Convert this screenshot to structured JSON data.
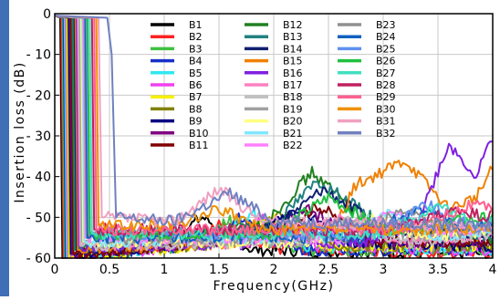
{
  "chart_data": {
    "type": "line",
    "xlabel": "Frequency(GHz)",
    "ylabel": "Insertion loss (dB)",
    "xlim": [
      0,
      4
    ],
    "ylim": [
      -60,
      0
    ],
    "x_ticks": [
      "0",
      "0.5",
      "1",
      "1.5",
      "2",
      "2.5",
      "3",
      "3.5",
      "4"
    ],
    "y_ticks": [
      "0",
      "- 10",
      "- 20",
      "- 30",
      "- 40",
      "- 50",
      "- 60"
    ],
    "grid": true,
    "legend_position": "top-right",
    "series": [
      {
        "name": "B1",
        "color": "#000000",
        "cutoff": 0.05,
        "peak": [
          1.35,
          -50
        ],
        "points": [
          [
            0,
            -0.5
          ],
          [
            0.05,
            -1
          ],
          [
            0.07,
            -60
          ],
          [
            1.0,
            -56
          ],
          [
            1.35,
            -50
          ],
          [
            1.8,
            -58
          ],
          [
            4,
            -59
          ]
        ]
      },
      {
        "name": "B2",
        "color": "#ff2020",
        "cutoff": 0.06,
        "peak": [
          1.5,
          -52
        ],
        "points": [
          [
            0,
            -0.5
          ],
          [
            0.06,
            -1
          ],
          [
            0.08,
            -60
          ],
          [
            1.1,
            -57
          ],
          [
            1.5,
            -52
          ],
          [
            2.0,
            -58
          ],
          [
            4,
            -59
          ]
        ]
      },
      {
        "name": "B3",
        "color": "#40c040",
        "cutoff": 0.07,
        "peak": [
          1.6,
          -51
        ],
        "points": [
          [
            0,
            -0.5
          ],
          [
            0.07,
            -1
          ],
          [
            0.09,
            -60
          ],
          [
            1.2,
            -57
          ],
          [
            1.6,
            -51
          ],
          [
            2.1,
            -58
          ],
          [
            4,
            -58
          ]
        ]
      },
      {
        "name": "B4",
        "color": "#1830c8",
        "cutoff": 0.08,
        "peak": [
          1.7,
          -50
        ],
        "points": [
          [
            0,
            -0.5
          ],
          [
            0.08,
            -1
          ],
          [
            0.1,
            -60
          ],
          [
            1.3,
            -57
          ],
          [
            1.7,
            -50
          ],
          [
            2.2,
            -58
          ],
          [
            4,
            -58
          ]
        ]
      },
      {
        "name": "B5",
        "color": "#30e8f0",
        "cutoff": 0.09,
        "peak": [
          1.8,
          -49
        ],
        "points": [
          [
            0,
            -0.5
          ],
          [
            0.09,
            -1
          ],
          [
            0.11,
            -60
          ],
          [
            1.4,
            -56
          ],
          [
            1.8,
            -49
          ],
          [
            2.3,
            -57
          ],
          [
            4,
            -58
          ]
        ]
      },
      {
        "name": "B6",
        "color": "#f040f0",
        "cutoff": 0.1,
        "peak": [
          1.9,
          -50
        ],
        "points": [
          [
            0,
            -0.5
          ],
          [
            0.1,
            -1
          ],
          [
            0.12,
            -60
          ],
          [
            1.5,
            -56
          ],
          [
            1.9,
            -50
          ],
          [
            2.4,
            -57
          ],
          [
            4,
            -58
          ]
        ]
      },
      {
        "name": "B7",
        "color": "#f8f000",
        "cutoff": 0.11,
        "peak": [
          2.0,
          -50
        ],
        "points": [
          [
            0,
            -0.5
          ],
          [
            0.11,
            -1
          ],
          [
            0.13,
            -60
          ],
          [
            1.6,
            -56
          ],
          [
            2.0,
            -50
          ],
          [
            2.5,
            -57
          ],
          [
            4,
            -57
          ]
        ]
      },
      {
        "name": "B8",
        "color": "#808000",
        "cutoff": 0.12,
        "peak": [
          2.1,
          -49
        ],
        "points": [
          [
            0,
            -0.5
          ],
          [
            0.12,
            -1
          ],
          [
            0.14,
            -59
          ],
          [
            1.7,
            -56
          ],
          [
            2.1,
            -49
          ],
          [
            2.6,
            -57
          ],
          [
            4,
            -57
          ]
        ]
      },
      {
        "name": "B9",
        "color": "#000080",
        "cutoff": 0.13,
        "peak": [
          2.2,
          -48
        ],
        "points": [
          [
            0,
            -0.5
          ],
          [
            0.13,
            -1
          ],
          [
            0.15,
            -59
          ],
          [
            1.8,
            -55
          ],
          [
            2.2,
            -48
          ],
          [
            2.7,
            -56
          ],
          [
            4,
            -57
          ]
        ]
      },
      {
        "name": "B10",
        "color": "#800080",
        "cutoff": 0.14,
        "peak": [
          2.3,
          -48
        ],
        "points": [
          [
            0,
            -0.5
          ],
          [
            0.14,
            -1
          ],
          [
            0.16,
            -59
          ],
          [
            1.9,
            -55
          ],
          [
            2.3,
            -48
          ],
          [
            2.8,
            -56
          ],
          [
            4,
            -56
          ]
        ]
      },
      {
        "name": "B11",
        "color": "#800000",
        "cutoff": 0.15,
        "peak": [
          2.4,
          -47
        ],
        "points": [
          [
            0,
            -0.5
          ],
          [
            0.15,
            -1
          ],
          [
            0.17,
            -59
          ],
          [
            2.0,
            -55
          ],
          [
            2.4,
            -47
          ],
          [
            2.9,
            -56
          ],
          [
            4,
            -56
          ]
        ]
      },
      {
        "name": "B12",
        "color": "#208020",
        "cutoff": 0.16,
        "peak": [
          2.35,
          -39
        ],
        "points": [
          [
            0,
            -0.5
          ],
          [
            0.16,
            -1
          ],
          [
            0.18,
            -58
          ],
          [
            1.9,
            -52
          ],
          [
            2.35,
            -39
          ],
          [
            2.9,
            -52
          ],
          [
            4,
            -55
          ]
        ]
      },
      {
        "name": "B13",
        "color": "#208080",
        "cutoff": 0.17,
        "peak": [
          2.4,
          -41
        ],
        "points": [
          [
            0,
            -0.5
          ],
          [
            0.17,
            -1
          ],
          [
            0.19,
            -58
          ],
          [
            2.0,
            -52
          ],
          [
            2.4,
            -41
          ],
          [
            3.0,
            -52
          ],
          [
            4,
            -55
          ]
        ]
      },
      {
        "name": "B14",
        "color": "#102070",
        "cutoff": 0.18,
        "peak": [
          2.45,
          -43
        ],
        "points": [
          [
            0,
            -0.5
          ],
          [
            0.18,
            -1
          ],
          [
            0.2,
            -58
          ],
          [
            2.0,
            -53
          ],
          [
            2.45,
            -43
          ],
          [
            3.0,
            -53
          ],
          [
            4,
            -54
          ]
        ]
      },
      {
        "name": "B15",
        "color": "#f08000",
        "cutoff": 0.19,
        "peak": [
          3.2,
          -36
        ],
        "points": [
          [
            0,
            -0.5
          ],
          [
            0.19,
            -1
          ],
          [
            0.21,
            -58
          ],
          [
            2.5,
            -55
          ],
          [
            2.75,
            -42
          ],
          [
            3.2,
            -36
          ],
          [
            3.6,
            -48
          ],
          [
            3.85,
            -45
          ],
          [
            4,
            -38
          ]
        ]
      },
      {
        "name": "B16",
        "color": "#8020e0",
        "cutoff": 0.2,
        "peak": [
          3.6,
          -32
        ],
        "points": [
          [
            0,
            -0.5
          ],
          [
            0.2,
            -1
          ],
          [
            0.22,
            -57
          ],
          [
            2.9,
            -56
          ],
          [
            3.3,
            -52
          ],
          [
            3.6,
            -32
          ],
          [
            3.85,
            -40
          ],
          [
            4,
            -30
          ]
        ]
      },
      {
        "name": "B17",
        "color": "#ff80c0",
        "cutoff": 0.21,
        "peak": [
          2.6,
          -50
        ],
        "points": [
          [
            0,
            -0.5
          ],
          [
            0.21,
            -1
          ],
          [
            0.23,
            -57
          ],
          [
            2.1,
            -56
          ],
          [
            2.6,
            -50
          ],
          [
            3.1,
            -56
          ],
          [
            4,
            -54
          ]
        ]
      },
      {
        "name": "B18",
        "color": "#c0c0c0",
        "cutoff": 0.22,
        "peak": [
          2.7,
          -51
        ],
        "points": [
          [
            0,
            -0.5
          ],
          [
            0.22,
            -1
          ],
          [
            0.24,
            -57
          ],
          [
            2.2,
            -56
          ],
          [
            2.7,
            -51
          ],
          [
            3.2,
            -56
          ],
          [
            4,
            -54
          ]
        ]
      },
      {
        "name": "B19",
        "color": "#a0a0a0",
        "cutoff": 0.23,
        "peak": [
          2.8,
          -50
        ],
        "points": [
          [
            0,
            -0.5
          ],
          [
            0.23,
            -1
          ],
          [
            0.25,
            -56
          ],
          [
            2.3,
            -56
          ],
          [
            2.8,
            -50
          ],
          [
            3.3,
            -55
          ],
          [
            4,
            -53
          ]
        ]
      },
      {
        "name": "B20",
        "color": "#ffff80",
        "cutoff": 0.24,
        "peak": [
          2.9,
          -50
        ],
        "points": [
          [
            0,
            -0.5
          ],
          [
            0.24,
            -1
          ],
          [
            0.26,
            -56
          ],
          [
            2.4,
            -56
          ],
          [
            2.9,
            -50
          ],
          [
            3.4,
            -55
          ],
          [
            4,
            -53
          ]
        ]
      },
      {
        "name": "B21",
        "color": "#80e8ff",
        "cutoff": 0.25,
        "peak": [
          3.0,
          -49
        ],
        "points": [
          [
            0,
            -0.5
          ],
          [
            0.25,
            -1
          ],
          [
            0.27,
            -56
          ],
          [
            2.5,
            -55
          ],
          [
            3.0,
            -49
          ],
          [
            3.5,
            -55
          ],
          [
            4,
            -53
          ]
        ]
      },
      {
        "name": "B22",
        "color": "#ff80ff",
        "cutoff": 0.26,
        "peak": [
          3.1,
          -49
        ],
        "points": [
          [
            0,
            -0.5
          ],
          [
            0.26,
            -1
          ],
          [
            0.28,
            -55
          ],
          [
            2.6,
            -55
          ],
          [
            3.1,
            -49
          ],
          [
            3.6,
            -54
          ],
          [
            4,
            -52
          ]
        ]
      },
      {
        "name": "B23",
        "color": "#909090",
        "cutoff": 0.27,
        "peak": [
          3.2,
          -48
        ],
        "points": [
          [
            0,
            -0.5
          ],
          [
            0.27,
            -1
          ],
          [
            0.29,
            -55
          ],
          [
            2.7,
            -55
          ],
          [
            3.2,
            -48
          ],
          [
            3.7,
            -54
          ],
          [
            4,
            -52
          ]
        ]
      },
      {
        "name": "B24",
        "color": "#1060c0",
        "cutoff": 0.28,
        "peak": [
          3.3,
          -48
        ],
        "points": [
          [
            0,
            -0.5
          ],
          [
            0.28,
            -1
          ],
          [
            0.3,
            -55
          ],
          [
            2.8,
            -55
          ],
          [
            3.3,
            -48
          ],
          [
            3.8,
            -53
          ],
          [
            4,
            -51
          ]
        ]
      },
      {
        "name": "B25",
        "color": "#6090f0",
        "cutoff": 0.29,
        "peak": [
          3.4,
          -47
        ],
        "points": [
          [
            0,
            -0.5
          ],
          [
            0.29,
            -1
          ],
          [
            0.31,
            -54
          ],
          [
            2.9,
            -54
          ],
          [
            3.4,
            -47
          ],
          [
            3.85,
            -53
          ],
          [
            4,
            -51
          ]
        ]
      },
      {
        "name": "B26",
        "color": "#20c040",
        "cutoff": 0.3,
        "peak": [
          2.5,
          -45
        ],
        "points": [
          [
            0,
            -0.5
          ],
          [
            0.3,
            -1
          ],
          [
            0.32,
            -54
          ],
          [
            2.0,
            -54
          ],
          [
            2.5,
            -45
          ],
          [
            3.0,
            -53
          ],
          [
            4,
            -50
          ]
        ]
      },
      {
        "name": "B27",
        "color": "#40e0c0",
        "cutoff": 0.32,
        "peak": [
          3.5,
          -47
        ],
        "points": [
          [
            0,
            -0.5
          ],
          [
            0.32,
            -1
          ],
          [
            0.34,
            -54
          ],
          [
            3.0,
            -54
          ],
          [
            3.5,
            -47
          ],
          [
            3.9,
            -52
          ],
          [
            4,
            -50
          ]
        ]
      },
      {
        "name": "B28",
        "color": "#c02060",
        "cutoff": 0.34,
        "peak": [
          3.7,
          -48
        ],
        "points": [
          [
            0,
            -0.5
          ],
          [
            0.34,
            -1
          ],
          [
            0.36,
            -53
          ],
          [
            3.1,
            -53
          ],
          [
            3.7,
            -48
          ],
          [
            3.95,
            -50
          ],
          [
            4,
            -49
          ]
        ]
      },
      {
        "name": "B29",
        "color": "#ff6090",
        "cutoff": 0.36,
        "peak": [
          3.8,
          -47
        ],
        "points": [
          [
            0,
            -0.5
          ],
          [
            0.36,
            -1
          ],
          [
            0.38,
            -53
          ],
          [
            3.2,
            -53
          ],
          [
            3.8,
            -47
          ],
          [
            4,
            -48
          ]
        ]
      },
      {
        "name": "B30",
        "color": "#f09000",
        "cutoff": 0.38,
        "peak": [
          1.5,
          -48
        ],
        "points": [
          [
            0,
            -0.5
          ],
          [
            0.38,
            -1
          ],
          [
            0.4,
            -52
          ],
          [
            1.1,
            -52
          ],
          [
            1.5,
            -48
          ],
          [
            1.9,
            -53
          ],
          [
            4,
            -53
          ]
        ]
      },
      {
        "name": "B31",
        "color": "#f0a0c0",
        "cutoff": 0.4,
        "peak": [
          1.5,
          -43
        ],
        "points": [
          [
            0,
            -0.5
          ],
          [
            0.4,
            -1
          ],
          [
            0.43,
            -50
          ],
          [
            1.1,
            -51
          ],
          [
            1.5,
            -43
          ],
          [
            1.9,
            -51
          ],
          [
            4,
            -52
          ]
        ]
      },
      {
        "name": "B32",
        "color": "#7080c0",
        "cutoff": 0.5,
        "peak": [
          1.6,
          -44
        ],
        "points": [
          [
            0,
            -0.5
          ],
          [
            0.48,
            -1
          ],
          [
            0.52,
            -10
          ],
          [
            0.56,
            -50
          ],
          [
            1.1,
            -51
          ],
          [
            1.6,
            -44
          ],
          [
            2.0,
            -51
          ],
          [
            4,
            -52
          ]
        ]
      }
    ]
  }
}
